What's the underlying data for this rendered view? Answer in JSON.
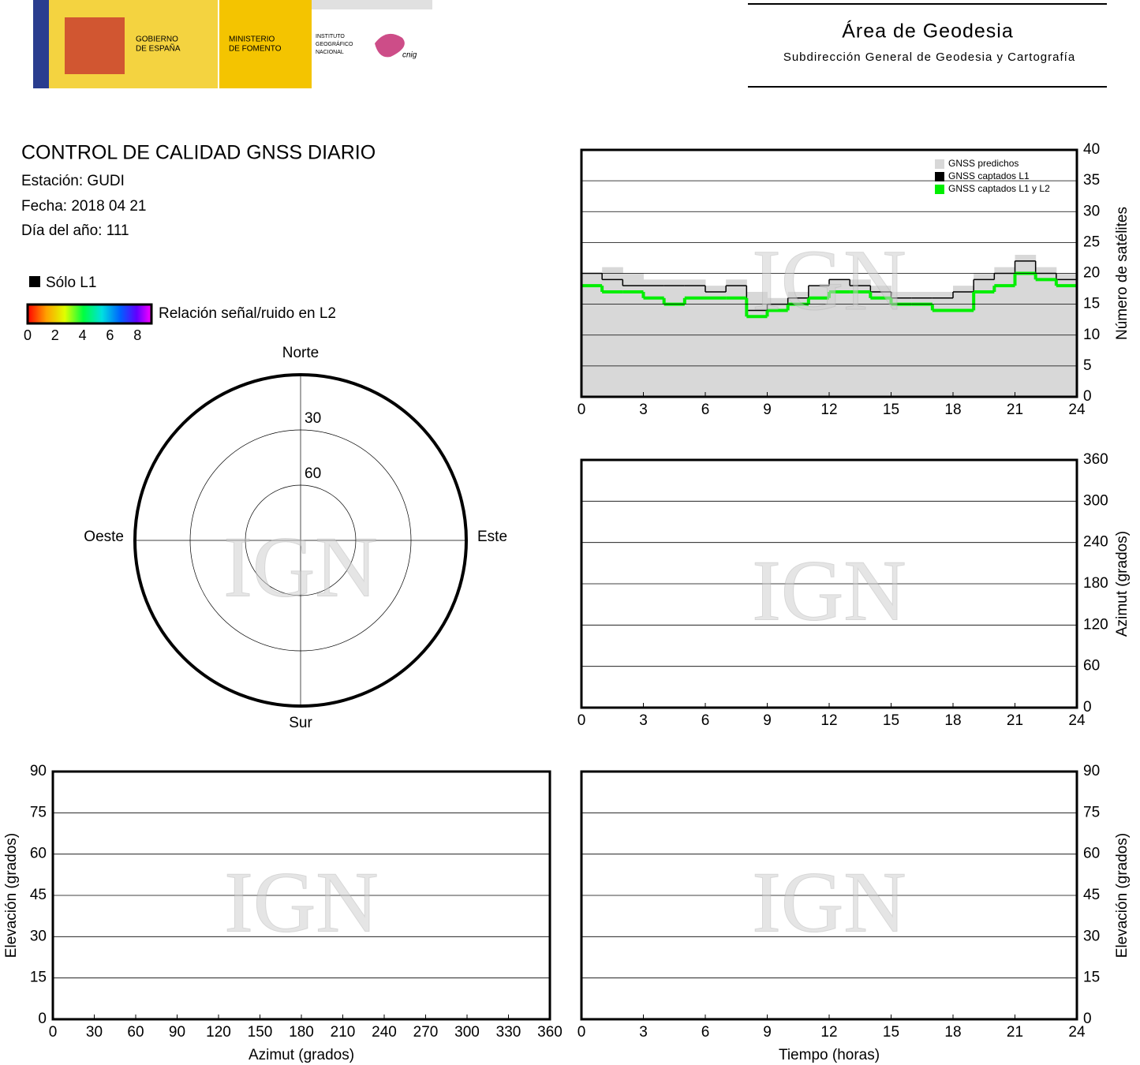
{
  "header": {
    "gov1": "GOBIERNO",
    "gov2": "DE ESPAÑA",
    "min1": "MINISTERIO",
    "min2": "DE FOMENTO",
    "ign1": "INSTITUTO",
    "ign2": "GEOGRÁFICO",
    "ign3": "NACIONAL",
    "cnig": "cnig",
    "area": "Área de Geodesia",
    "sub": "Subdirección General de Geodesia y Cartografía"
  },
  "info": {
    "title": "CONTROL DE CALIDAD GNSS DIARIO",
    "station": "Estación: GUDI",
    "date": "Fecha: 2018 04 21",
    "doy": "Día del año: 111"
  },
  "legend": {
    "l1": "Sólo L1",
    "snr": "Relación señal/ruido en L2",
    "snr_ticks": [
      0,
      2,
      4,
      6,
      8
    ]
  },
  "watermark": "IGN",
  "skyplot": {
    "north": "Norte",
    "south": "Sur",
    "west": "Oeste",
    "east": "Este",
    "rings": [
      30,
      60
    ]
  },
  "chart_data": [
    {
      "type": "step",
      "ylabel": "Número de satélites",
      "yaxis_side": "right",
      "x": [
        0,
        1,
        2,
        3,
        4,
        5,
        6,
        7,
        8,
        9,
        10,
        11,
        12,
        13,
        14,
        15,
        16,
        17,
        18,
        19,
        20,
        21,
        22,
        23
      ],
      "series": [
        {
          "name": "GNSS predichos",
          "color": "#d8d8d8",
          "values": [
            20,
            21,
            20,
            19,
            19,
            19,
            18,
            19,
            17,
            16,
            17,
            18,
            19,
            19,
            18,
            17,
            17,
            17,
            18,
            20,
            21,
            23,
            21,
            20
          ]
        },
        {
          "name": "GNSS captados L1",
          "color": "#000000",
          "values": [
            20,
            19,
            18,
            18,
            18,
            18,
            17,
            18,
            14,
            15,
            16,
            18,
            19,
            18,
            17,
            16,
            16,
            16,
            17,
            19,
            20,
            22,
            20,
            19
          ]
        },
        {
          "name": "GNSS captados L1 y L2",
          "color": "#00ee00",
          "values": [
            18,
            17,
            17,
            16,
            15,
            16,
            16,
            16,
            13,
            14,
            15,
            16,
            17,
            17,
            16,
            15,
            15,
            14,
            14,
            17,
            18,
            20,
            19,
            18
          ]
        }
      ],
      "xlim": [
        0,
        24
      ],
      "xticks": [
        0,
        3,
        6,
        9,
        12,
        15,
        18,
        21,
        24
      ],
      "ylim": [
        0,
        40
      ],
      "yticks": [
        0,
        5,
        10,
        15,
        20,
        25,
        30,
        35,
        40
      ],
      "grid": true
    },
    {
      "type": "scatter",
      "ylabel": "Azimut (grados)",
      "yaxis_side": "right",
      "xlim": [
        0,
        24
      ],
      "xticks": [
        0,
        3,
        6,
        9,
        12,
        15,
        18,
        21,
        24
      ],
      "ylim": [
        0,
        360
      ],
      "yticks": [
        0,
        60,
        120,
        180,
        240,
        300,
        360
      ],
      "grid": true
    },
    {
      "type": "scatter",
      "xlabel": "Azimut (grados)",
      "ylabel": "Elevación (grados)",
      "yaxis_side": "left",
      "xlim": [
        0,
        360
      ],
      "xticks": [
        0,
        30,
        60,
        90,
        120,
        150,
        180,
        210,
        240,
        270,
        300,
        330,
        360
      ],
      "ylim": [
        0,
        90
      ],
      "yticks": [
        0,
        15,
        30,
        45,
        60,
        75,
        90
      ],
      "grid": true
    },
    {
      "type": "scatter",
      "xlabel": "Tiempo (horas)",
      "ylabel": "Elevación (grados)",
      "yaxis_side": "right",
      "xlim": [
        0,
        24
      ],
      "xticks": [
        0,
        3,
        6,
        9,
        12,
        15,
        18,
        21,
        24
      ],
      "ylim": [
        0,
        90
      ],
      "yticks": [
        0,
        15,
        30,
        45,
        60,
        75,
        90
      ],
      "grid": true
    }
  ]
}
